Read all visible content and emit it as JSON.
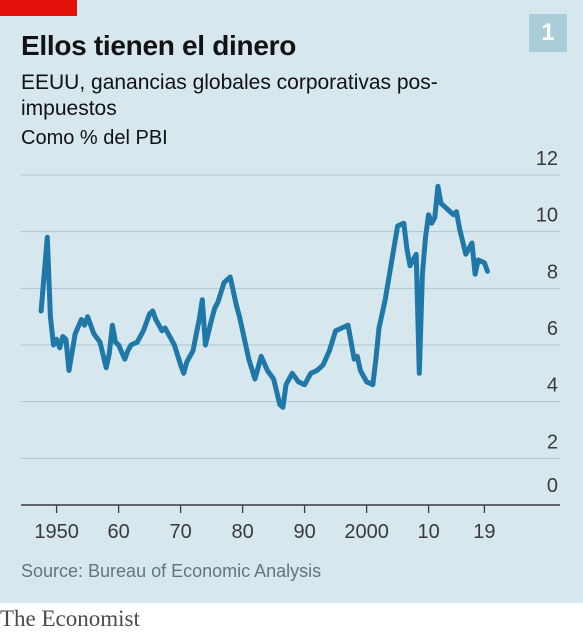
{
  "colors": {
    "accent_red": "#e3120b",
    "line": "#1f78a8",
    "panel": "#d6e7ee",
    "grid": "#a8c7d2",
    "badge": "#a9cdd9"
  },
  "header": {
    "title": "Ellos tienen el dinero",
    "badge": "1",
    "subtitle": "EEUU, ganancias globales corporativas pos-impuestos",
    "unit": "Como % del PBI"
  },
  "footer": {
    "source": "Source: Bureau of Economic Analysis",
    "brand": "The Economist"
  },
  "chart_data": {
    "type": "line",
    "title": "Ellos tienen el dinero",
    "subtitle": "EEUU, ganancias globales corporativas pos-impuestos",
    "ylabel": "Como % del PBI",
    "xlabel": "",
    "ylim": [
      0,
      12
    ],
    "xlim": [
      1947,
      2022
    ],
    "yticks": [
      0,
      2,
      4,
      6,
      8,
      10,
      12
    ],
    "xticks": [
      {
        "value": 1950,
        "label": "1950"
      },
      {
        "value": 1960,
        "label": "60"
      },
      {
        "value": 1970,
        "label": "70"
      },
      {
        "value": 1980,
        "label": "80"
      },
      {
        "value": 1990,
        "label": "90"
      },
      {
        "value": 2000,
        "label": "2000"
      },
      {
        "value": 2010,
        "label": "10"
      },
      {
        "value": 2019,
        "label": "19"
      }
    ],
    "grid": true,
    "y_axis_side": "right",
    "series": [
      {
        "x": [
          1947.5,
          1948.5,
          1949,
          1949.5,
          1950,
          1950.5,
          1951,
          1951.5,
          1952,
          1953,
          1954,
          1954.5,
          1955,
          1955.5,
          1956,
          1957,
          1958,
          1958.5,
          1959,
          1959.5,
          1960,
          1961,
          1961.5,
          1962,
          1963,
          1964,
          1965,
          1965.5,
          1966,
          1967,
          1967.5,
          1968,
          1969,
          1970,
          1970.5,
          1971,
          1972,
          1973,
          1973.5,
          1974,
          1975,
          1975.5,
          1976,
          1977,
          1978,
          1979,
          1979.5,
          1980,
          1981,
          1982,
          1983,
          1984,
          1985,
          1986,
          1986.5,
          1987,
          1988,
          1989,
          1990,
          1991,
          1992,
          1993,
          1994,
          1995,
          1996,
          1997,
          1998,
          1998.5,
          1999,
          2000,
          2001,
          2001.5,
          2002,
          2003,
          2004,
          2005,
          2006,
          2006.5,
          2007,
          2008,
          2008.5,
          2009,
          2009.5,
          2010,
          2010.5,
          2011,
          2011.5,
          2012,
          2013,
          2014,
          2014.5,
          2015,
          2016,
          2017,
          2017.5,
          2018,
          2019,
          2019.5
        ],
        "values": [
          7.2,
          9.8,
          7.0,
          6.0,
          6.2,
          5.9,
          6.3,
          6.2,
          5.1,
          6.4,
          6.9,
          6.7,
          7.0,
          6.7,
          6.4,
          6.1,
          5.2,
          5.7,
          6.7,
          6.1,
          6.0,
          5.5,
          5.8,
          6.0,
          6.1,
          6.5,
          7.1,
          7.2,
          6.9,
          6.5,
          6.6,
          6.4,
          6.0,
          5.3,
          5.0,
          5.4,
          5.8,
          6.9,
          7.6,
          6.0,
          6.9,
          7.3,
          7.5,
          8.2,
          8.4,
          7.4,
          7.0,
          6.5,
          5.5,
          4.8,
          5.6,
          5.1,
          4.8,
          3.9,
          3.8,
          4.6,
          5.0,
          4.7,
          4.6,
          5.0,
          5.1,
          5.3,
          5.8,
          6.5,
          6.6,
          6.7,
          5.5,
          5.6,
          5.1,
          4.7,
          4.6,
          5.5,
          6.6,
          7.6,
          8.9,
          10.2,
          10.3,
          9.4,
          8.8,
          9.2,
          5.0,
          8.5,
          9.8,
          10.6,
          10.3,
          10.5,
          11.6,
          11.0,
          10.8,
          10.6,
          10.7,
          10.1,
          9.2,
          9.6,
          8.5,
          9.0,
          8.9,
          8.6
        ]
      }
    ]
  }
}
